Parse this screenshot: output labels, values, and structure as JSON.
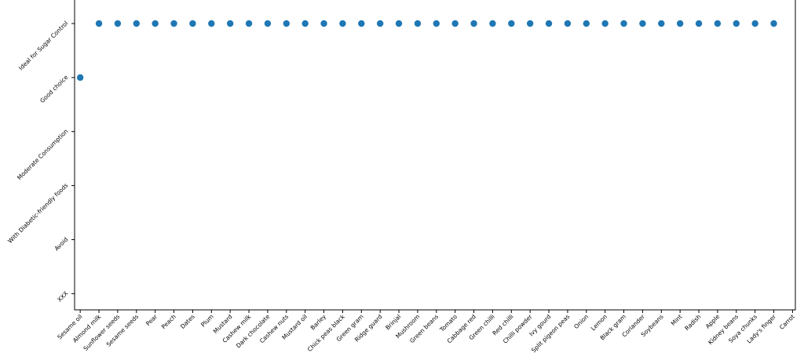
{
  "chart_data": {
    "type": "scatter",
    "categories": [
      "Sesame oil",
      "Almond milk",
      "Sunflower seeds",
      "Sesame seeds",
      "Pear",
      "Peach",
      "Dates",
      "Plum",
      "Mustard",
      "Cashew milk",
      "Dark chocolate",
      "Cashew nuts",
      "Mustard oil",
      "Barley",
      "Chick peas black",
      "Green gram",
      "Ridge guard",
      "Brinjal",
      "Mushroom",
      "Green beans",
      "Tomato",
      "Cabbage red",
      "Green chilli",
      "Red chilli",
      "Chilli powder",
      "Ivy gourd",
      "Split pigeon peas",
      "Onion",
      "Lemon",
      "Black gram",
      "Coriander",
      "Soybeans",
      "Mint",
      "Radish",
      "Apple",
      "Kidney beans",
      "Soya chunks",
      "Lady's finger",
      "Carrot"
    ],
    "values": [
      4,
      5,
      5,
      5,
      5,
      5,
      5,
      5,
      5,
      5,
      5,
      5,
      5,
      5,
      5,
      5,
      5,
      5,
      5,
      5,
      5,
      5,
      5,
      5,
      5,
      5,
      5,
      5,
      5,
      5,
      5,
      5,
      5,
      5,
      5,
      5,
      5,
      5,
      null
    ],
    "color": "#1f77b4",
    "xlim": [
      -0.3,
      38.15
    ],
    "ylim": [
      -0.3,
      5.45
    ],
    "yticks": [
      {
        "value": 0,
        "label": "XXX"
      },
      {
        "value": 1,
        "label": "Avoid"
      },
      {
        "value": 2,
        "label": "With Diabetic-friendly foods"
      },
      {
        "value": 3,
        "label": "Moderate Consumption"
      },
      {
        "value": 4,
        "label": "Good choice"
      },
      {
        "value": 5,
        "label": "Ideal for Sugar Control"
      }
    ]
  }
}
